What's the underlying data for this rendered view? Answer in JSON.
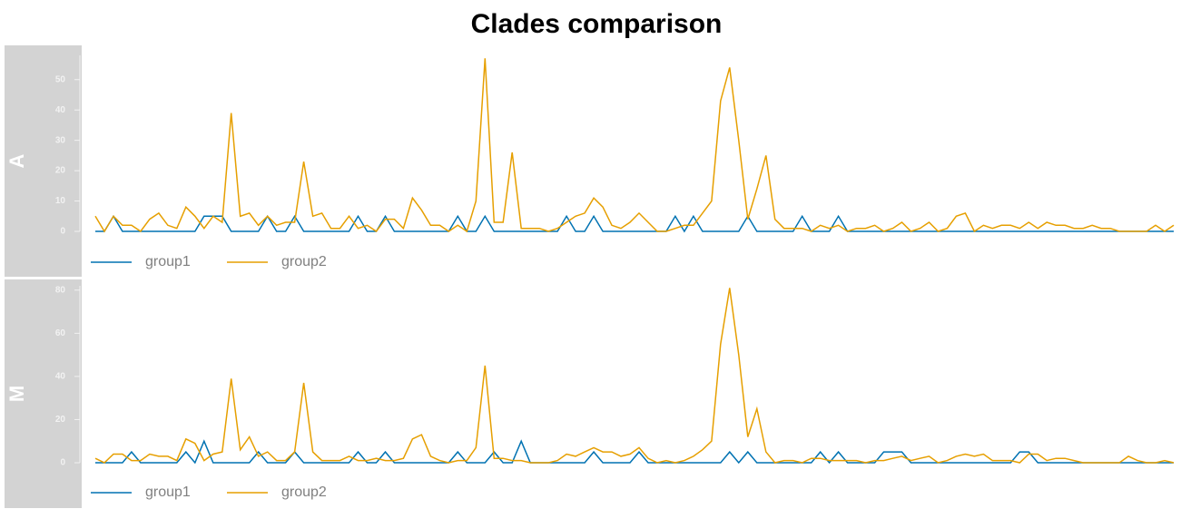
{
  "title": "Clades comparison",
  "chart_data": [
    {
      "type": "line",
      "panel_label": "A",
      "ylim": [
        0,
        58
      ],
      "yticks": [
        0,
        10,
        20,
        30,
        40,
        50
      ],
      "series": [
        {
          "name": "group1",
          "color": "#0072B2",
          "values": [
            0,
            0,
            5,
            0,
            0,
            0,
            0,
            0,
            0,
            0,
            0,
            0,
            5,
            5,
            5,
            0,
            0,
            0,
            0,
            5,
            0,
            0,
            5,
            0,
            0,
            0,
            0,
            0,
            0,
            5,
            0,
            0,
            5,
            0,
            0,
            0,
            0,
            0,
            0,
            0,
            5,
            0,
            0,
            5,
            0,
            0,
            0,
            0,
            0,
            0,
            0,
            0,
            5,
            0,
            0,
            5,
            0,
            0,
            0,
            0,
            0,
            0,
            0,
            0,
            5,
            0,
            5,
            0,
            0,
            0,
            0,
            0,
            5,
            0,
            0,
            0,
            0,
            0,
            5,
            0,
            0,
            0,
            5,
            0,
            0,
            0,
            0,
            0,
            0,
            0,
            0,
            0,
            0,
            0,
            0,
            0,
            0,
            0,
            0,
            0,
            0,
            0,
            0,
            0,
            0,
            0,
            0,
            0,
            0,
            0,
            0,
            0,
            0,
            0,
            0,
            0,
            0,
            0,
            0,
            0
          ]
        },
        {
          "name": "group2",
          "color": "#E69F00",
          "values": [
            5,
            0,
            5,
            2,
            2,
            0,
            4,
            6,
            2,
            1,
            8,
            5,
            1,
            5,
            3,
            39,
            5,
            6,
            2,
            5,
            2,
            3,
            3,
            23,
            5,
            6,
            1,
            1,
            5,
            1,
            2,
            0,
            4,
            4,
            1,
            11,
            7,
            2,
            2,
            0,
            2,
            0,
            10,
            57,
            3,
            3,
            26,
            1,
            1,
            1,
            0,
            1,
            3,
            5,
            6,
            11,
            8,
            2,
            1,
            3,
            6,
            3,
            0,
            0,
            1,
            2,
            2,
            6,
            10,
            43,
            54,
            30,
            4,
            14,
            25,
            4,
            1,
            1,
            1,
            0,
            2,
            1,
            2,
            0,
            1,
            1,
            2,
            0,
            1,
            3,
            0,
            1,
            3,
            0,
            1,
            5,
            6,
            0,
            2,
            1,
            2,
            2,
            1,
            3,
            1,
            3,
            2,
            2,
            1,
            1,
            2,
            1,
            1,
            0,
            0,
            0,
            0,
            2,
            0,
            2
          ]
        }
      ]
    },
    {
      "type": "line",
      "panel_label": "M",
      "ylim": [
        0,
        82
      ],
      "yticks": [
        0,
        20,
        40,
        60,
        80
      ],
      "series": [
        {
          "name": "group1",
          "color": "#0072B2",
          "values": [
            0,
            0,
            0,
            0,
            5,
            0,
            0,
            0,
            0,
            0,
            5,
            0,
            10,
            0,
            0,
            0,
            0,
            0,
            5,
            0,
            0,
            0,
            5,
            0,
            0,
            0,
            0,
            0,
            0,
            5,
            0,
            0,
            5,
            0,
            0,
            0,
            0,
            0,
            0,
            0,
            5,
            0,
            0,
            0,
            5,
            0,
            0,
            10,
            0,
            0,
            0,
            0,
            0,
            0,
            0,
            5,
            0,
            0,
            0,
            0,
            5,
            0,
            0,
            0,
            0,
            0,
            0,
            0,
            0,
            0,
            5,
            0,
            5,
            0,
            0,
            0,
            0,
            0,
            0,
            0,
            5,
            0,
            5,
            0,
            0,
            0,
            0,
            5,
            5,
            5,
            0,
            0,
            0,
            0,
            0,
            0,
            0,
            0,
            0,
            0,
            0,
            0,
            5,
            5,
            0,
            0,
            0,
            0,
            0,
            0,
            0,
            0,
            0,
            0,
            0,
            0,
            0,
            0,
            0,
            0
          ]
        },
        {
          "name": "group2",
          "color": "#E69F00",
          "values": [
            2,
            0,
            4,
            4,
            1,
            1,
            4,
            3,
            3,
            1,
            11,
            9,
            1,
            4,
            5,
            39,
            6,
            12,
            3,
            5,
            1,
            1,
            5,
            37,
            5,
            1,
            1,
            1,
            3,
            1,
            1,
            2,
            1,
            1,
            2,
            11,
            13,
            3,
            1,
            0,
            1,
            1,
            7,
            45,
            2,
            2,
            1,
            1,
            0,
            0,
            0,
            1,
            4,
            3,
            5,
            7,
            5,
            5,
            3,
            4,
            7,
            2,
            0,
            1,
            0,
            1,
            3,
            6,
            10,
            55,
            81,
            50,
            12,
            25,
            5,
            0,
            1,
            1,
            0,
            2,
            2,
            1,
            1,
            1,
            1,
            0,
            1,
            1,
            2,
            3,
            1,
            2,
            3,
            0,
            1,
            3,
            4,
            3,
            4,
            1,
            1,
            1,
            0,
            4,
            4,
            1,
            2,
            2,
            1,
            0,
            0,
            0,
            0,
            0,
            3,
            1,
            0,
            0,
            1,
            0
          ]
        }
      ]
    }
  ]
}
